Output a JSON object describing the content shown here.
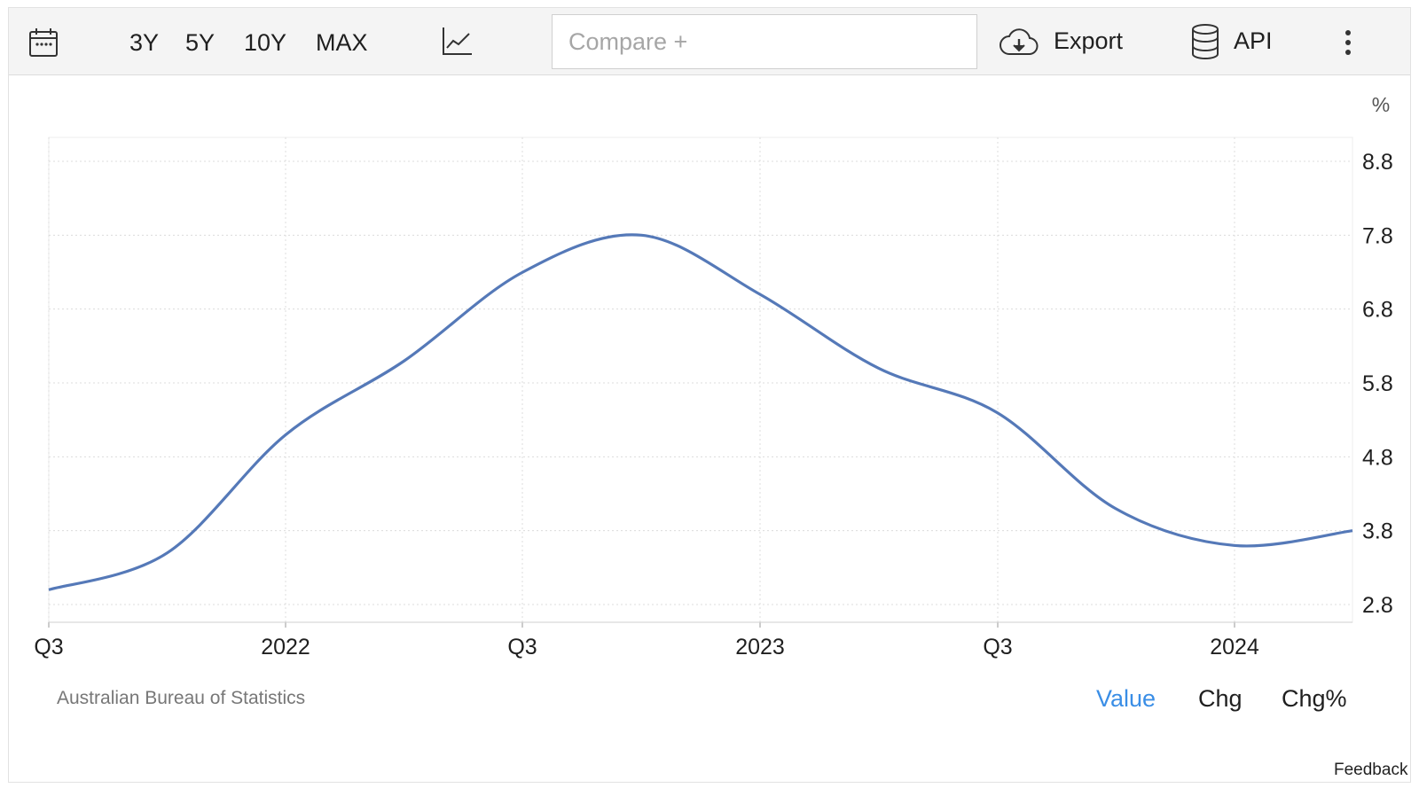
{
  "toolbar": {
    "calendar_icon": "calendar-icon",
    "ranges": [
      "3Y",
      "5Y",
      "10Y",
      "MAX"
    ],
    "chart_type_icon": "line-chart-icon",
    "compare_placeholder": "Compare +",
    "export_label": "Export",
    "export_icon": "cloud-download-icon",
    "api_label": "API",
    "api_icon": "database-icon",
    "menu_icon": "vertical-dots-icon"
  },
  "chart_data": {
    "type": "line",
    "title": "",
    "xlabel": "",
    "ylabel": "",
    "unit": "%",
    "x_tick_labels": [
      "Q3",
      "2022",
      "Q3",
      "2023",
      "Q3",
      "2024"
    ],
    "y_tick_labels": [
      "8.8",
      "7.8",
      "6.8",
      "5.8",
      "4.8",
      "3.8",
      "2.8"
    ],
    "ylim": [
      2.8,
      8.8
    ],
    "grid": true,
    "line_color": "#5579b8",
    "series": [
      {
        "x": [
          "2021-Q3",
          "2021-Q4",
          "2022-Q1",
          "2022-Q2",
          "2022-Q3",
          "2022-Q4",
          "2023-Q1",
          "2023-Q2",
          "2023-Q3",
          "2023-Q4",
          "2024-Q1",
          "2024-Q2"
        ],
        "values": [
          3.0,
          3.5,
          5.1,
          6.1,
          7.3,
          7.8,
          7.0,
          6.0,
          5.4,
          4.1,
          3.6,
          3.8
        ]
      }
    ]
  },
  "footer": {
    "source": "Australian Bureau of Statistics",
    "modes": [
      "Value",
      "Chg",
      "Chg%"
    ],
    "active_mode": "Value",
    "active_color": "#3a8ee6",
    "feedback": "Feedback"
  }
}
